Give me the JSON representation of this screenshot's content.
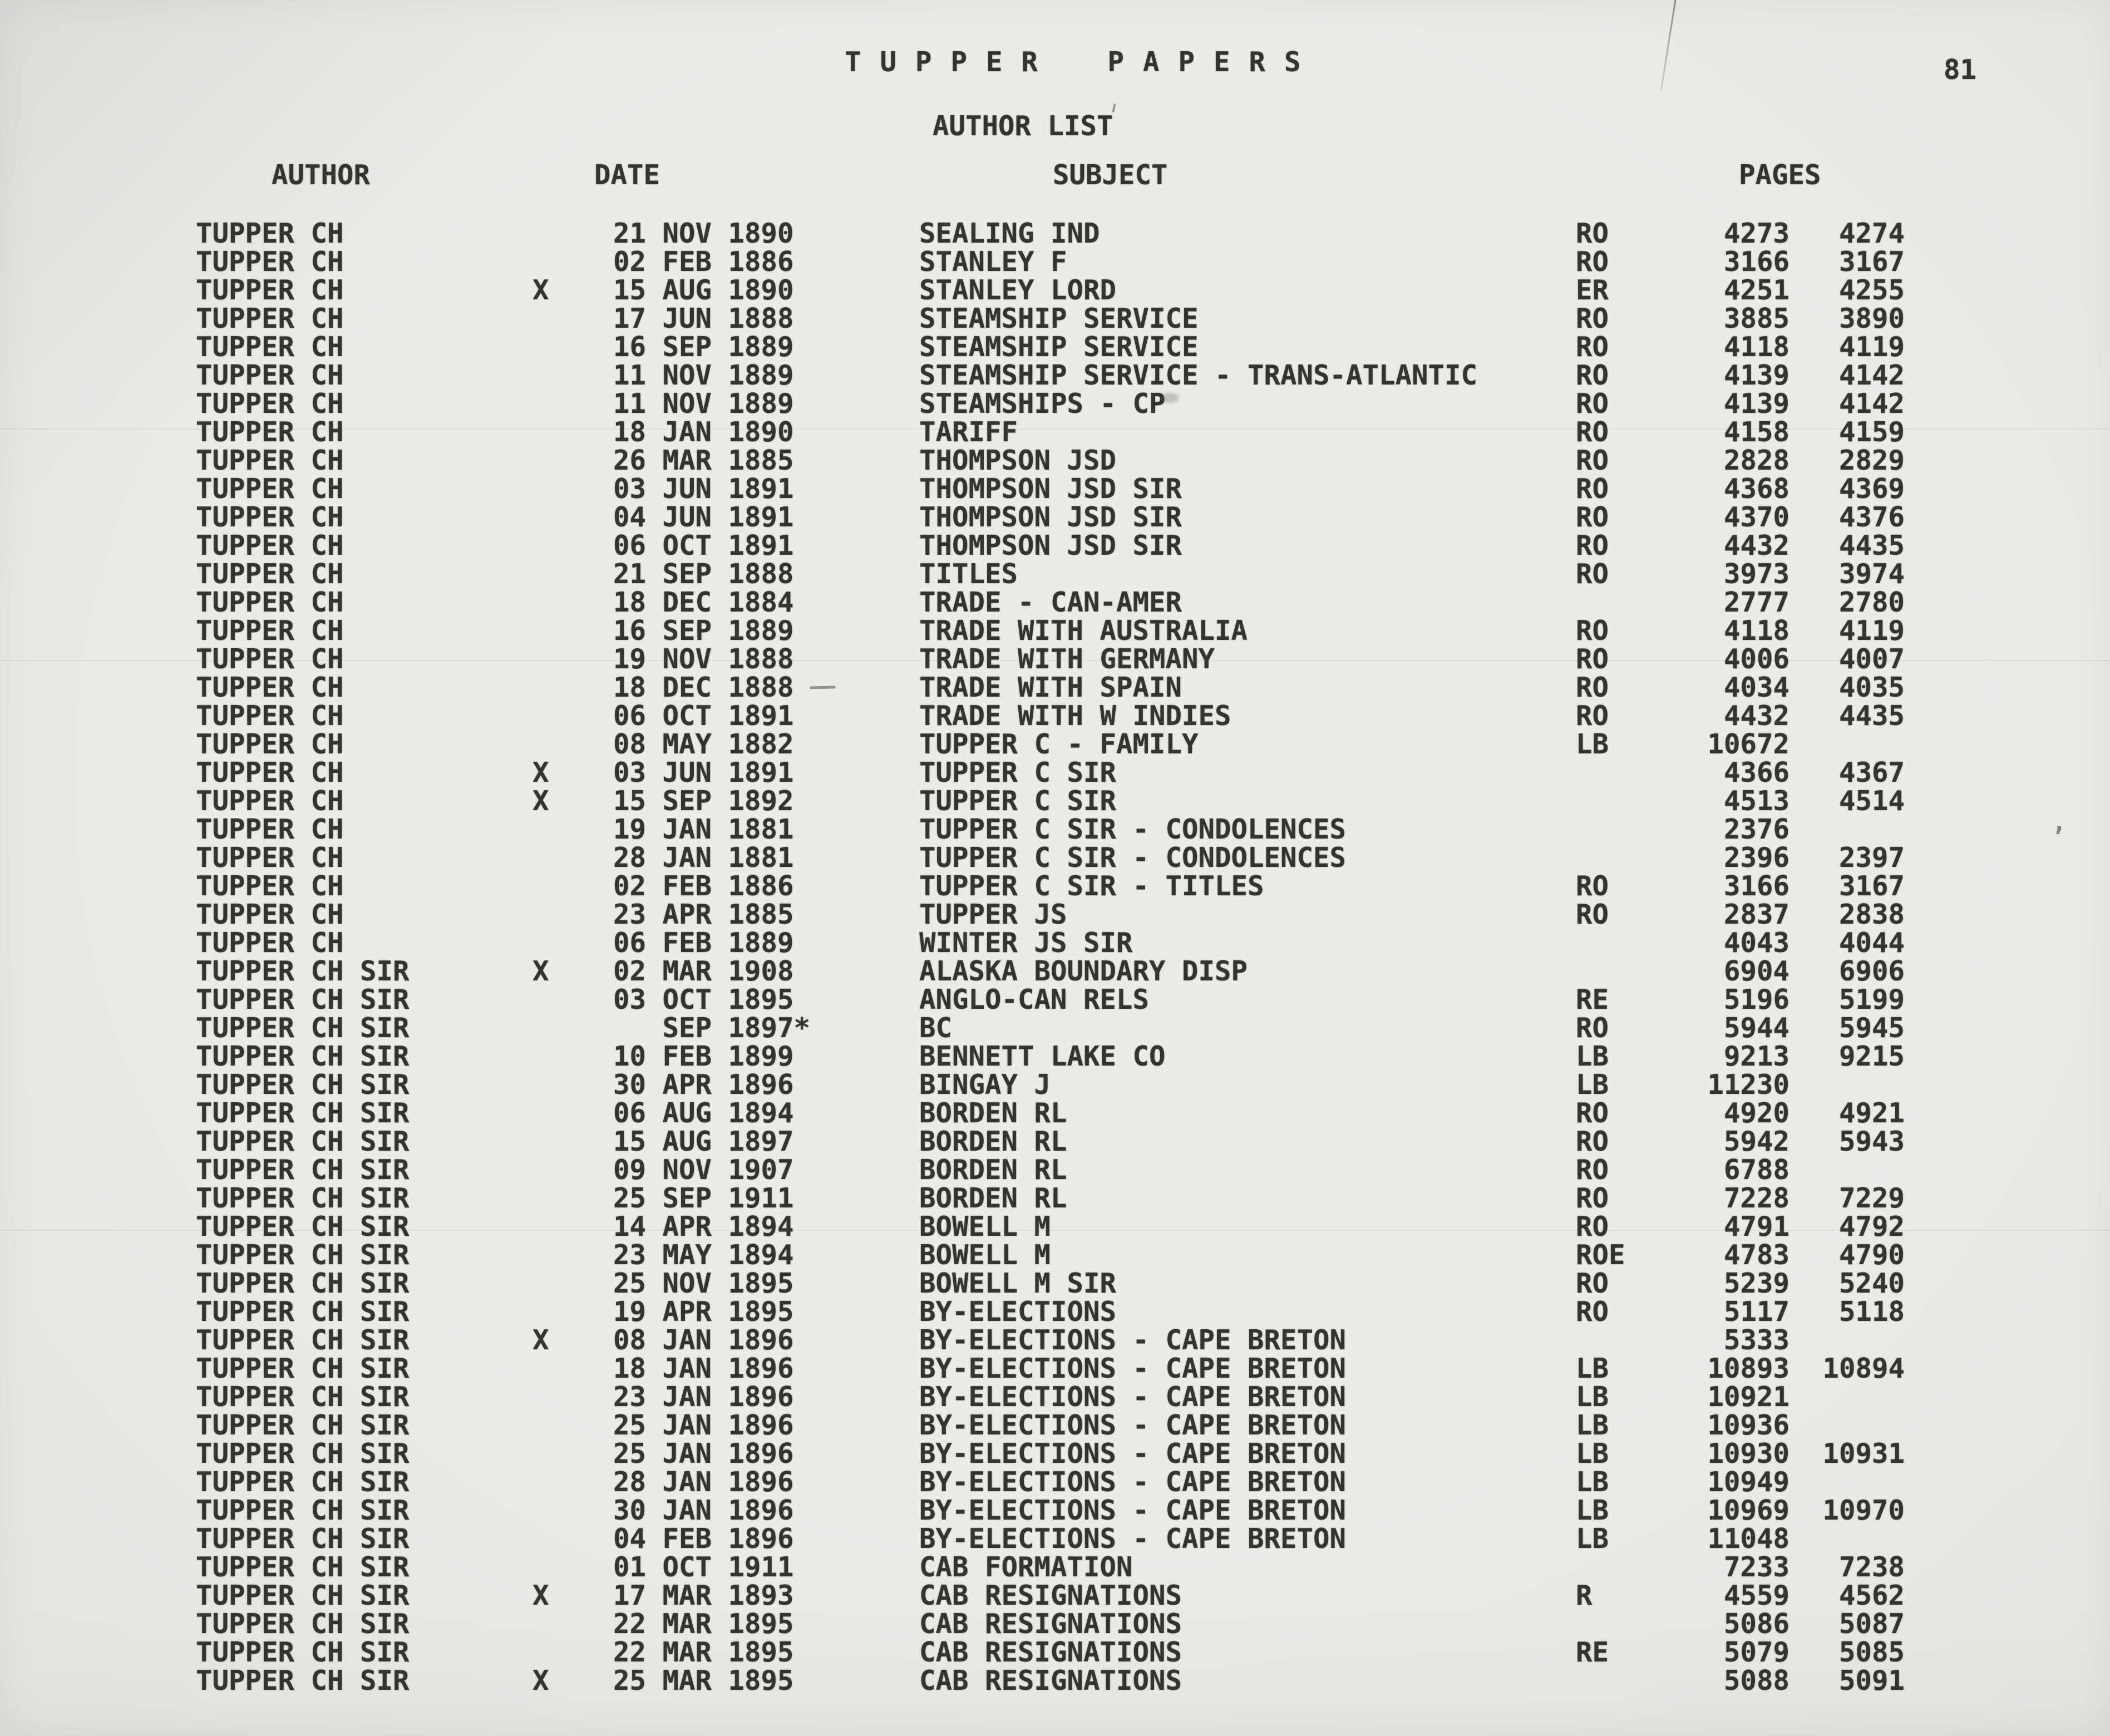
{
  "colors": {
    "paper": "#e9e8e5",
    "ink": "#33332f"
  },
  "page": {
    "title": "TUPPER PAPERS",
    "subtitle": "AUTHOR LIST",
    "page_number": "81"
  },
  "columns": {
    "author": "AUTHOR",
    "date": "DATE",
    "subject": "SUBJECT",
    "pages": "PAGES"
  },
  "rows": [
    {
      "author": "TUPPER CH",
      "x": "",
      "date": "21 NOV 1890",
      "subject": "SEALING IND",
      "code": "RO",
      "page_from": "4273",
      "page_to": "4274"
    },
    {
      "author": "TUPPER CH",
      "x": "",
      "date": "02 FEB 1886",
      "subject": "STANLEY F",
      "code": "RO",
      "page_from": "3166",
      "page_to": "3167"
    },
    {
      "author": "TUPPER CH",
      "x": "X",
      "date": "15 AUG 1890",
      "subject": "STANLEY LORD",
      "code": "ER",
      "page_from": "4251",
      "page_to": "4255"
    },
    {
      "author": "TUPPER CH",
      "x": "",
      "date": "17 JUN 1888",
      "subject": "STEAMSHIP SERVICE",
      "code": "RO",
      "page_from": "3885",
      "page_to": "3890"
    },
    {
      "author": "TUPPER CH",
      "x": "",
      "date": "16 SEP 1889",
      "subject": "STEAMSHIP SERVICE",
      "code": "RO",
      "page_from": "4118",
      "page_to": "4119"
    },
    {
      "author": "TUPPER CH",
      "x": "",
      "date": "11 NOV 1889",
      "subject": "STEAMSHIP SERVICE - TRANS-ATLANTIC",
      "code": "RO",
      "page_from": "4139",
      "page_to": "4142"
    },
    {
      "author": "TUPPER CH",
      "x": "",
      "date": "11 NOV 1889",
      "subject": "STEAMSHIPS - CP",
      "code": "RO",
      "page_from": "4139",
      "page_to": "4142"
    },
    {
      "author": "TUPPER CH",
      "x": "",
      "date": "18 JAN 1890",
      "subject": "TARIFF",
      "code": "RO",
      "page_from": "4158",
      "page_to": "4159"
    },
    {
      "author": "TUPPER CH",
      "x": "",
      "date": "26 MAR 1885",
      "subject": "THOMPSON JSD",
      "code": "RO",
      "page_from": "2828",
      "page_to": "2829"
    },
    {
      "author": "TUPPER CH",
      "x": "",
      "date": "03 JUN 1891",
      "subject": "THOMPSON JSD SIR",
      "code": "RO",
      "page_from": "4368",
      "page_to": "4369"
    },
    {
      "author": "TUPPER CH",
      "x": "",
      "date": "04 JUN 1891",
      "subject": "THOMPSON JSD SIR",
      "code": "RO",
      "page_from": "4370",
      "page_to": "4376"
    },
    {
      "author": "TUPPER CH",
      "x": "",
      "date": "06 OCT 1891",
      "subject": "THOMPSON JSD SIR",
      "code": "RO",
      "page_from": "4432",
      "page_to": "4435"
    },
    {
      "author": "TUPPER CH",
      "x": "",
      "date": "21 SEP 1888",
      "subject": "TITLES",
      "code": "RO",
      "page_from": "3973",
      "page_to": "3974"
    },
    {
      "author": "TUPPER CH",
      "x": "",
      "date": "18 DEC 1884",
      "subject": "TRADE - CAN-AMER",
      "code": "",
      "page_from": "2777",
      "page_to": "2780"
    },
    {
      "author": "TUPPER CH",
      "x": "",
      "date": "16 SEP 1889",
      "subject": "TRADE WITH AUSTRALIA",
      "code": "RO",
      "page_from": "4118",
      "page_to": "4119"
    },
    {
      "author": "TUPPER CH",
      "x": "",
      "date": "19 NOV 1888",
      "subject": "TRADE WITH GERMANY",
      "code": "RO",
      "page_from": "4006",
      "page_to": "4007"
    },
    {
      "author": "TUPPER CH",
      "x": "",
      "date": "18 DEC 1888",
      "subject": "TRADE WITH SPAIN",
      "code": "RO",
      "page_from": "4034",
      "page_to": "4035"
    },
    {
      "author": "TUPPER CH",
      "x": "",
      "date": "06 OCT 1891",
      "subject": "TRADE WITH W INDIES",
      "code": "RO",
      "page_from": "4432",
      "page_to": "4435"
    },
    {
      "author": "TUPPER CH",
      "x": "",
      "date": "08 MAY 1882",
      "subject": "TUPPER C - FAMILY",
      "code": "LB",
      "page_from": "10672",
      "page_to": ""
    },
    {
      "author": "TUPPER CH",
      "x": "X",
      "date": "03 JUN 1891",
      "subject": "TUPPER C SIR",
      "code": "",
      "page_from": "4366",
      "page_to": "4367"
    },
    {
      "author": "TUPPER CH",
      "x": "X",
      "date": "15 SEP 1892",
      "subject": "TUPPER C SIR",
      "code": "",
      "page_from": "4513",
      "page_to": "4514"
    },
    {
      "author": "TUPPER CH",
      "x": "",
      "date": "19 JAN 1881",
      "subject": "TUPPER C SIR - CONDOLENCES",
      "code": "",
      "page_from": "2376",
      "page_to": ""
    },
    {
      "author": "TUPPER CH",
      "x": "",
      "date": "28 JAN 1881",
      "subject": "TUPPER C SIR - CONDOLENCES",
      "code": "",
      "page_from": "2396",
      "page_to": "2397"
    },
    {
      "author": "TUPPER CH",
      "x": "",
      "date": "02 FEB 1886",
      "subject": "TUPPER C SIR - TITLES",
      "code": "RO",
      "page_from": "3166",
      "page_to": "3167"
    },
    {
      "author": "TUPPER CH",
      "x": "",
      "date": "23 APR 1885",
      "subject": "TUPPER JS",
      "code": "RO",
      "page_from": "2837",
      "page_to": "2838"
    },
    {
      "author": "TUPPER CH",
      "x": "",
      "date": "06 FEB 1889",
      "subject": "WINTER JS SIR",
      "code": "",
      "page_from": "4043",
      "page_to": "4044"
    },
    {
      "author": "TUPPER CH SIR",
      "x": "X",
      "date": "02 MAR 1908",
      "subject": "ALASKA BOUNDARY DISP",
      "code": "",
      "page_from": "6904",
      "page_to": "6906"
    },
    {
      "author": "TUPPER CH SIR",
      "x": "",
      "date": "03 OCT 1895",
      "subject": "ANGLO-CAN RELS",
      "code": "RE",
      "page_from": "5196",
      "page_to": "5199"
    },
    {
      "author": "TUPPER CH SIR",
      "x": "",
      "date": "   SEP 1897*",
      "subject": "BC",
      "code": "RO",
      "page_from": "5944",
      "page_to": "5945"
    },
    {
      "author": "TUPPER CH SIR",
      "x": "",
      "date": "10 FEB 1899",
      "subject": "BENNETT LAKE CO",
      "code": "LB",
      "page_from": "9213",
      "page_to": "9215"
    },
    {
      "author": "TUPPER CH SIR",
      "x": "",
      "date": "30 APR 1896",
      "subject": "BINGAY J",
      "code": "LB",
      "page_from": "11230",
      "page_to": ""
    },
    {
      "author": "TUPPER CH SIR",
      "x": "",
      "date": "06 AUG 1894",
      "subject": "BORDEN RL",
      "code": "RO",
      "page_from": "4920",
      "page_to": "4921"
    },
    {
      "author": "TUPPER CH SIR",
      "x": "",
      "date": "15 AUG 1897",
      "subject": "BORDEN RL",
      "code": "RO",
      "page_from": "5942",
      "page_to": "5943"
    },
    {
      "author": "TUPPER CH SIR",
      "x": "",
      "date": "09 NOV 1907",
      "subject": "BORDEN RL",
      "code": "RO",
      "page_from": "6788",
      "page_to": ""
    },
    {
      "author": "TUPPER CH SIR",
      "x": "",
      "date": "25 SEP 1911",
      "subject": "BORDEN RL",
      "code": "RO",
      "page_from": "7228",
      "page_to": "7229"
    },
    {
      "author": "TUPPER CH SIR",
      "x": "",
      "date": "14 APR 1894",
      "subject": "BOWELL M",
      "code": "RO",
      "page_from": "4791",
      "page_to": "4792"
    },
    {
      "author": "TUPPER CH SIR",
      "x": "",
      "date": "23 MAY 1894",
      "subject": "BOWELL M",
      "code": "ROE",
      "page_from": "4783",
      "page_to": "4790"
    },
    {
      "author": "TUPPER CH SIR",
      "x": "",
      "date": "25 NOV 1895",
      "subject": "BOWELL M SIR",
      "code": "RO",
      "page_from": "5239",
      "page_to": "5240"
    },
    {
      "author": "TUPPER CH SIR",
      "x": "",
      "date": "19 APR 1895",
      "subject": "BY-ELECTIONS",
      "code": "RO",
      "page_from": "5117",
      "page_to": "5118"
    },
    {
      "author": "TUPPER CH SIR",
      "x": "X",
      "date": "08 JAN 1896",
      "subject": "BY-ELECTIONS - CAPE BRETON",
      "code": "",
      "page_from": "5333",
      "page_to": ""
    },
    {
      "author": "TUPPER CH SIR",
      "x": "",
      "date": "18 JAN 1896",
      "subject": "BY-ELECTIONS - CAPE BRETON",
      "code": "LB",
      "page_from": "10893",
      "page_to": "10894"
    },
    {
      "author": "TUPPER CH SIR",
      "x": "",
      "date": "23 JAN 1896",
      "subject": "BY-ELECTIONS - CAPE BRETON",
      "code": "LB",
      "page_from": "10921",
      "page_to": ""
    },
    {
      "author": "TUPPER CH SIR",
      "x": "",
      "date": "25 JAN 1896",
      "subject": "BY-ELECTIONS - CAPE BRETON",
      "code": "LB",
      "page_from": "10936",
      "page_to": ""
    },
    {
      "author": "TUPPER CH SIR",
      "x": "",
      "date": "25 JAN 1896",
      "subject": "BY-ELECTIONS - CAPE BRETON",
      "code": "LB",
      "page_from": "10930",
      "page_to": "10931"
    },
    {
      "author": "TUPPER CH SIR",
      "x": "",
      "date": "28 JAN 1896",
      "subject": "BY-ELECTIONS - CAPE BRETON",
      "code": "LB",
      "page_from": "10949",
      "page_to": ""
    },
    {
      "author": "TUPPER CH SIR",
      "x": "",
      "date": "30 JAN 1896",
      "subject": "BY-ELECTIONS - CAPE BRETON",
      "code": "LB",
      "page_from": "10969",
      "page_to": "10970"
    },
    {
      "author": "TUPPER CH SIR",
      "x": "",
      "date": "04 FEB 1896",
      "subject": "BY-ELECTIONS - CAPE BRETON",
      "code": "LB",
      "page_from": "11048",
      "page_to": ""
    },
    {
      "author": "TUPPER CH SIR",
      "x": "",
      "date": "01 OCT 1911",
      "subject": "CAB FORMATION",
      "code": "",
      "page_from": "7233",
      "page_to": "7238"
    },
    {
      "author": "TUPPER CH SIR",
      "x": "X",
      "date": "17 MAR 1893",
      "subject": "CAB RESIGNATIONS",
      "code": "R",
      "page_from": "4559",
      "page_to": "4562"
    },
    {
      "author": "TUPPER CH SIR",
      "x": "",
      "date": "22 MAR 1895",
      "subject": "CAB RESIGNATIONS",
      "code": "",
      "page_from": "5086",
      "page_to": "5087"
    },
    {
      "author": "TUPPER CH SIR",
      "x": "",
      "date": "22 MAR 1895",
      "subject": "CAB RESIGNATIONS",
      "code": "RE",
      "page_from": "5079",
      "page_to": "5085"
    },
    {
      "author": "TUPPER CH SIR",
      "x": "X",
      "date": "25 MAR 1895",
      "subject": "CAB RESIGNATIONS",
      "code": "",
      "page_from": "5088",
      "page_to": "5091"
    }
  ]
}
